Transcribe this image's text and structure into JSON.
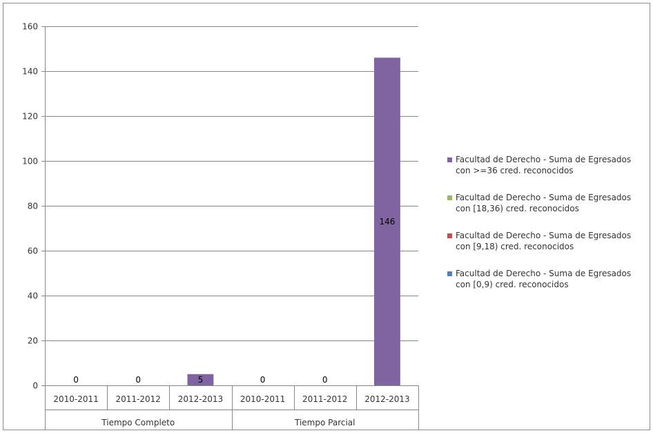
{
  "chart_data": {
    "type": "bar",
    "stacked": true,
    "title": "",
    "xlabel": "",
    "ylabel": "",
    "ylim": [
      0,
      160
    ],
    "yticks": [
      0,
      20,
      40,
      60,
      80,
      100,
      120,
      140,
      160
    ],
    "grid": true,
    "legend_position": "right",
    "groups": [
      {
        "label": "Tiempo Completo",
        "categories": [
          "2010-2011",
          "2011-2012",
          "2012-2013"
        ]
      },
      {
        "label": "Tiempo Parcial",
        "categories": [
          "2010-2011",
          "2011-2012",
          "2012-2013"
        ]
      }
    ],
    "series": [
      {
        "name": "Facultad de Derecho - Suma de Egresados con [0,9) cred. reconocidos",
        "color": "#4f81bd",
        "values": [
          0,
          0,
          0,
          0,
          0,
          0
        ]
      },
      {
        "name": "Facultad de Derecho - Suma de Egresados con [9,18) cred. reconocidos",
        "color": "#c0504d",
        "values": [
          0,
          0,
          0,
          0,
          0,
          0
        ]
      },
      {
        "name": "Facultad de Derecho - Suma de Egresados con [18,36) cred. reconocidos",
        "color": "#9bbb59",
        "values": [
          0,
          0,
          0,
          0,
          0,
          0
        ]
      },
      {
        "name": "Facultad de Derecho - Suma de Egresados con >=36 cred. reconocidos",
        "color": "#8064a2",
        "values": [
          0,
          0,
          5,
          0,
          0,
          146
        ]
      }
    ],
    "data_labels": [
      "0",
      "0",
      "5",
      "0",
      "0",
      "146"
    ],
    "legend": [
      {
        "line1": "Facultad de Derecho - Suma de Egresados",
        "line2": "con >=36 cred. reconocidos",
        "color": "#8064a2"
      },
      {
        "line1": "Facultad de Derecho - Suma de Egresados",
        "line2": "con [18,36) cred. reconocidos",
        "color": "#9bbb59"
      },
      {
        "line1": "Facultad de Derecho - Suma de Egresados",
        "line2": "con [9,18) cred. reconocidos",
        "color": "#c0504d"
      },
      {
        "line1": "Facultad de Derecho - Suma de Egresados",
        "line2": "con [0,9) cred. reconocidos",
        "color": "#4f81bd"
      }
    ]
  }
}
